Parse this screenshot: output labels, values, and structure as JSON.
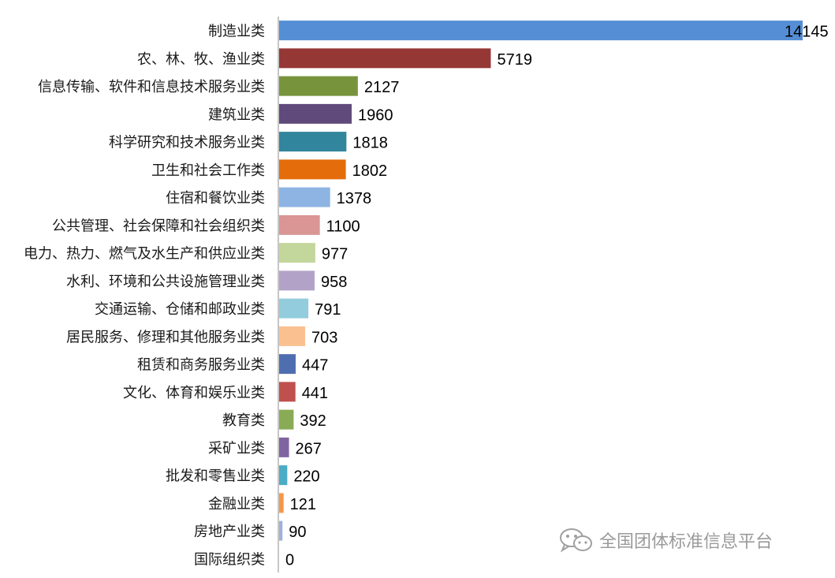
{
  "chart_data": {
    "type": "bar",
    "orientation": "horizontal",
    "categories": [
      "制造业类",
      "农、林、牧、渔业类",
      "信息传输、软件和信息技术服务业类",
      "建筑业类",
      "科学研究和技术服务业类",
      "卫生和社会工作类",
      "住宿和餐饮业类",
      "公共管理、社会保障和社会组织类",
      "电力、热力、燃气及水生产和供应业类",
      "水利、环境和公共设施管理业类",
      "交通运输、仓储和邮政业类",
      "居民服务、修理和其他服务业类",
      "租赁和商务服务业类",
      "文化、体育和娱乐业类",
      "教育类",
      "采矿业类",
      "批发和零售业类",
      "金融业类",
      "房地产业类",
      "国际组织类"
    ],
    "values": [
      14145,
      5719,
      2127,
      1960,
      1818,
      1802,
      1378,
      1100,
      977,
      958,
      791,
      703,
      447,
      441,
      392,
      267,
      220,
      121,
      90,
      0
    ],
    "colors": [
      "#558ed5",
      "#953735",
      "#77933c",
      "#604a7b",
      "#31859c",
      "#e46c0a",
      "#8eb4e3",
      "#d99694",
      "#c3d69b",
      "#b3a2c7",
      "#93cddd",
      "#fac090",
      "#4f6eb0",
      "#c0504d",
      "#8aab55",
      "#8064a2",
      "#4bacc6",
      "#f79646",
      "#9fb0dc",
      "#e6b9b8"
    ],
    "xlim": [
      0,
      14145
    ],
    "data_labels": true,
    "grid": false,
    "legend": "none",
    "title": "",
    "xlabel": "",
    "ylabel": ""
  },
  "watermark": {
    "icon": "wechat-icon",
    "text": "全国团体标准信息平台"
  }
}
